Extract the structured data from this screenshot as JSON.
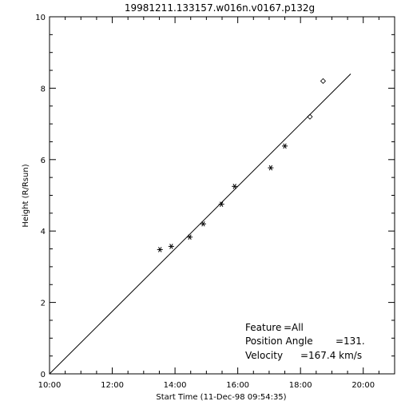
{
  "chart_data": {
    "type": "scatter",
    "title": "19981211.133157.w016n.v0167.p132g",
    "xlabel": "Start Time (11-Dec-98 09:54:35)",
    "ylabel": "Height (R/Rsun)",
    "x_unit": "hours",
    "xlim": [
      10.0,
      21.0
    ],
    "ylim": [
      0,
      10
    ],
    "x_ticks": [
      10,
      12,
      14,
      16,
      18,
      20
    ],
    "x_tick_labels": [
      "10:00",
      "12:00",
      "14:00",
      "16:00",
      "18:00",
      "20:00"
    ],
    "y_ticks": [
      0,
      2,
      4,
      6,
      8,
      10
    ],
    "y_tick_labels": [
      "0",
      "2",
      "4",
      "6",
      "8",
      "10"
    ],
    "grid": false,
    "series": [
      {
        "marker": "asterisk",
        "x": [
          13.52,
          13.88,
          14.47,
          14.9,
          15.48,
          15.9,
          17.05,
          17.5
        ],
        "y": [
          3.48,
          3.57,
          3.83,
          4.2,
          4.75,
          5.25,
          5.77,
          6.38
        ]
      },
      {
        "marker": "diamond",
        "x": [
          18.3,
          18.72
        ],
        "y": [
          7.2,
          8.2
        ]
      }
    ],
    "fit_line": {
      "x": [
        10.0,
        19.6
      ],
      "y": [
        0.0,
        8.4
      ]
    },
    "annotations": [
      {
        "label": "Feature",
        "value": "All"
      },
      {
        "label": "Position Angle",
        "value": "131."
      },
      {
        "label": "Velocity",
        "value": "167.4 km/s"
      }
    ]
  }
}
